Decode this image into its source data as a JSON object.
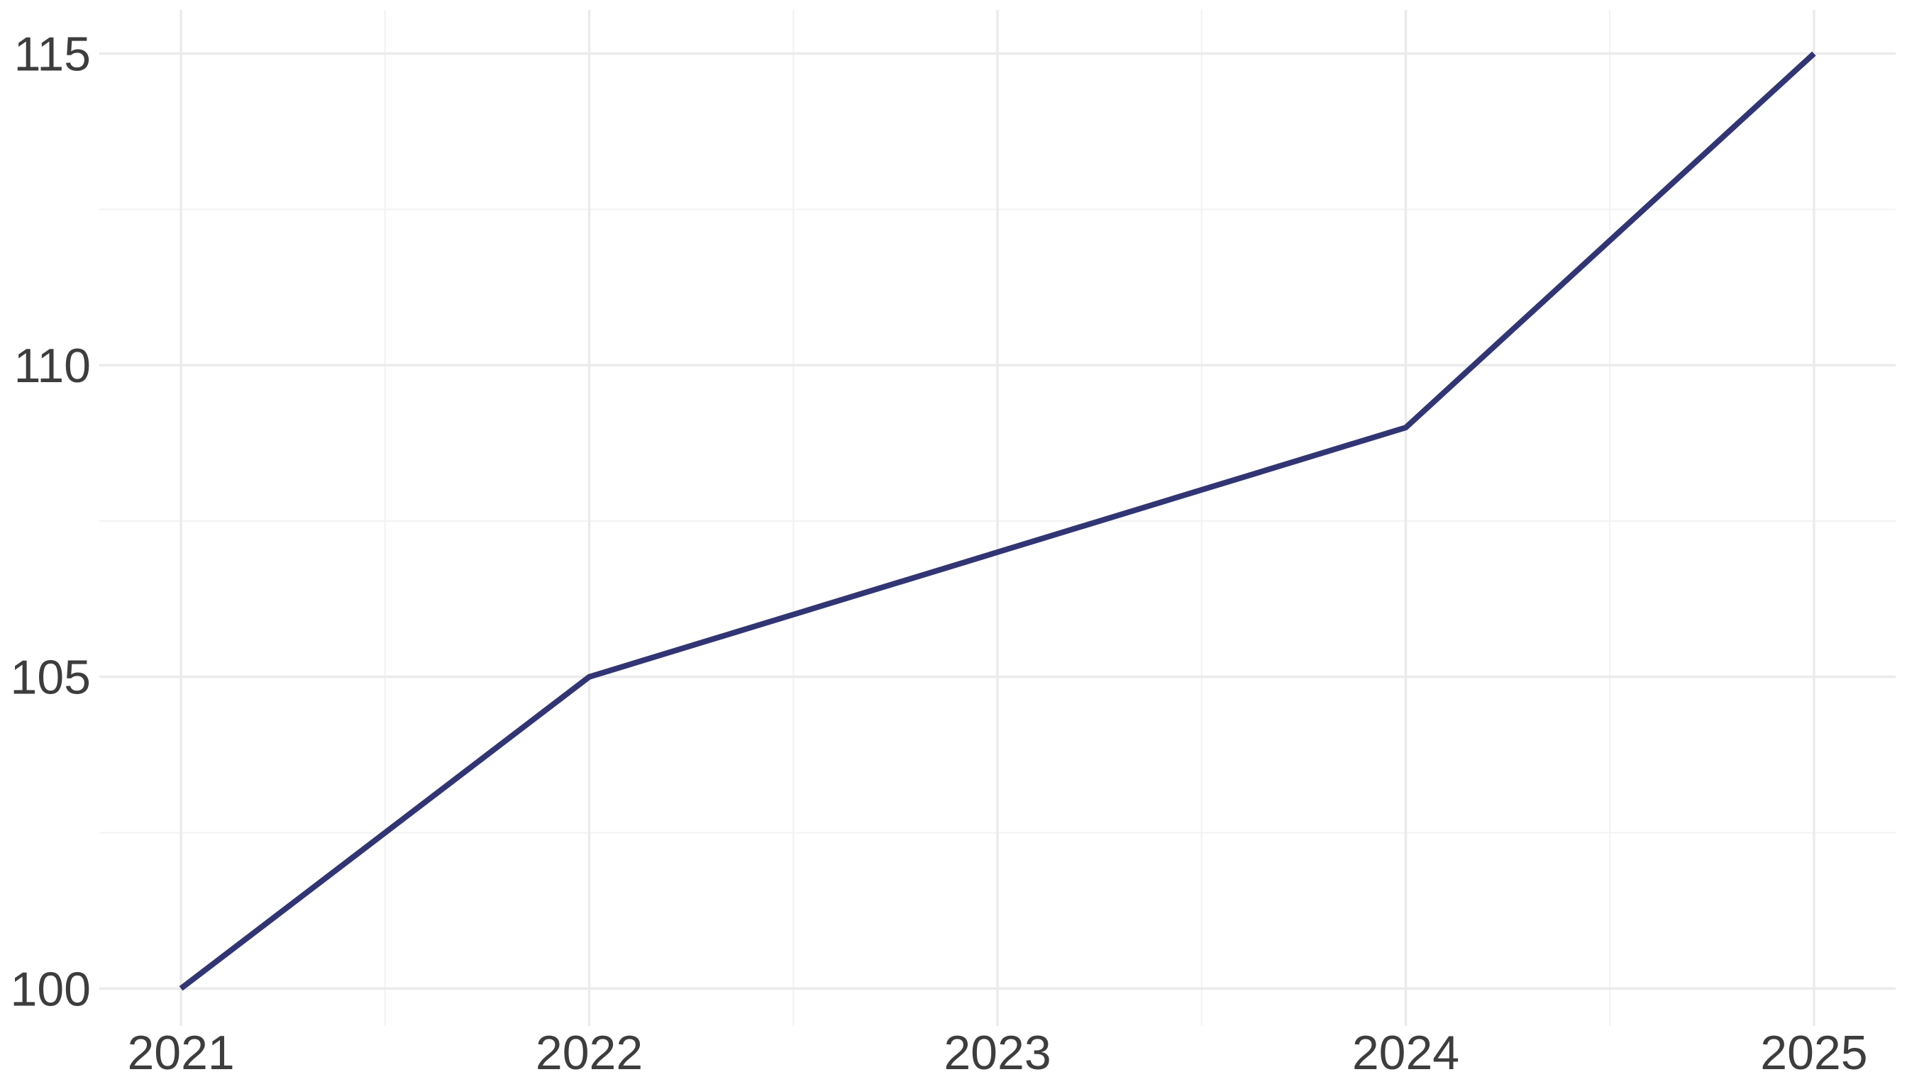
{
  "chart_data": {
    "type": "line",
    "title": "",
    "xlabel": "",
    "ylabel": "",
    "x": [
      "2021",
      "2022",
      "2023",
      "2024",
      "2025"
    ],
    "series": [
      {
        "values": [
          100,
          105,
          107,
          109,
          115
        ]
      }
    ],
    "xlim": [
      2020.8,
      2025.2
    ],
    "ylim": [
      99.4,
      115.7
    ],
    "y_ticks": [
      "100",
      "105",
      "110",
      "115"
    ],
    "x_ticks": [
      "2021",
      "2022",
      "2023",
      "2024",
      "2025"
    ],
    "grid": true,
    "legend": "none",
    "colors": {
      "line": "#323574",
      "grid": "#ebebeb",
      "text": "#3d3d3d"
    }
  }
}
